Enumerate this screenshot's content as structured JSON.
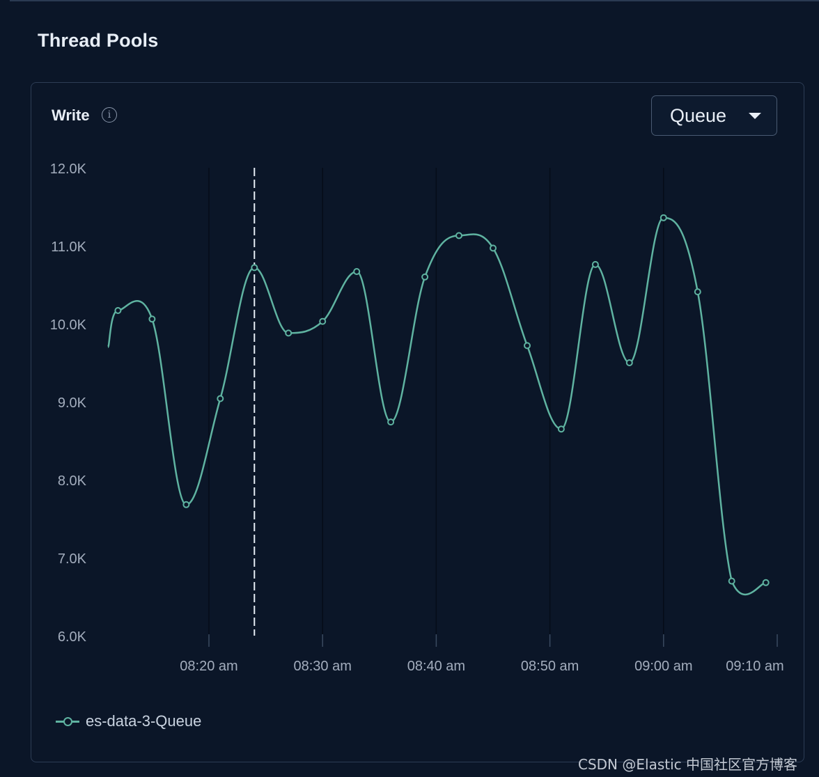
{
  "section": {
    "title": "Thread Pools"
  },
  "panel": {
    "title": "Write",
    "info_icon": "info-icon",
    "metric_select": {
      "selected": "Queue"
    }
  },
  "chart_data": {
    "type": "line",
    "x_tick_labels": [
      "08:20 am",
      "08:30 am",
      "08:40 am",
      "08:50 am",
      "09:00 am",
      "09:10 am"
    ],
    "y_tick_labels": [
      "12.0K",
      "11.0K",
      "10.0K",
      "9.0K",
      "8.0K",
      "7.0K",
      "6.0K"
    ],
    "ylim": [
      6000,
      12000
    ],
    "xlim_minutes": [
      "08:11",
      "09:10"
    ],
    "grid": "vertical-lines-on-x-ticks",
    "legend_position": "bottom-left",
    "crosshair_time": "08:24",
    "series": [
      {
        "name": "es-data-3-Queue",
        "color": "#5fb3a1",
        "x": [
          "08:12",
          "08:15",
          "08:18",
          "08:21",
          "08:24",
          "08:27",
          "08:30",
          "08:33",
          "08:36",
          "08:39",
          "08:42",
          "08:45",
          "08:48",
          "08:51",
          "08:54",
          "08:57",
          "09:00",
          "09:03",
          "09:06",
          "09:09"
        ],
        "y": [
          10170,
          10060,
          7680,
          9040,
          10720,
          9880,
          10030,
          10670,
          8740,
          10600,
          11130,
          10970,
          9720,
          8650,
          10760,
          9500,
          11360,
          10410,
          6700,
          6680
        ]
      }
    ]
  },
  "watermark": "CSDN @Elastic 中国社区官方博客"
}
